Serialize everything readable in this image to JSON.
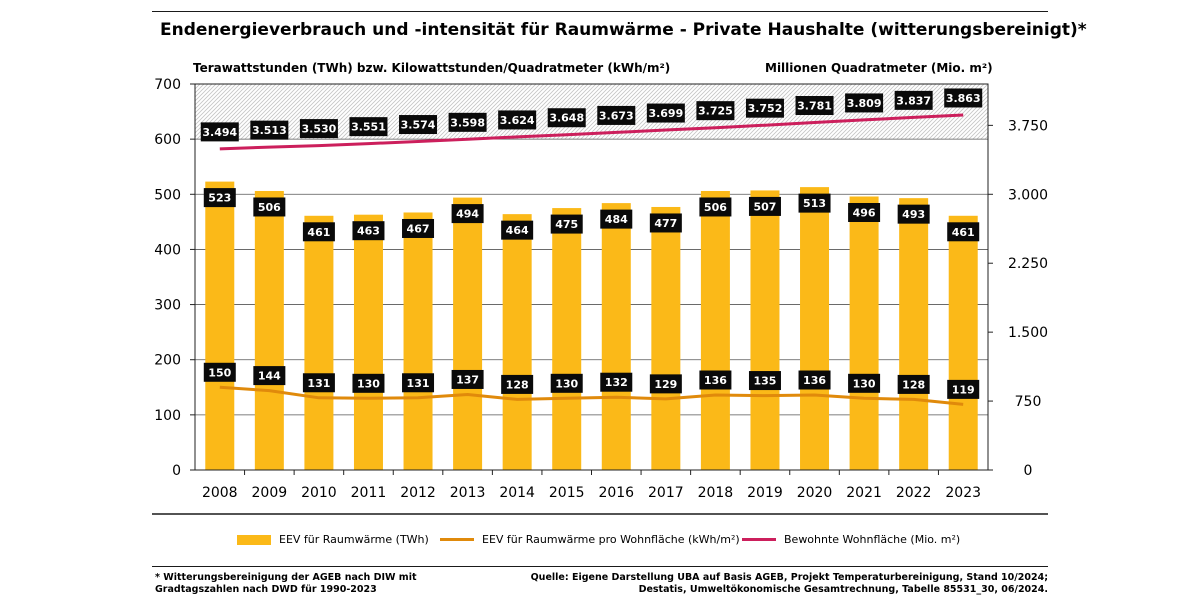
{
  "title": "Endenergieverbrauch und -intensität für Raumwärme - Private Haushalte (witterungsbereinigt)*",
  "chart_data": {
    "type": "bar",
    "categories": [
      "2008",
      "2009",
      "2010",
      "2011",
      "2012",
      "2013",
      "2014",
      "2015",
      "2016",
      "2017",
      "2018",
      "2019",
      "2020",
      "2021",
      "2022",
      "2023"
    ],
    "series": [
      {
        "name": "EEV für Raumwärme (TWh)",
        "type": "bar",
        "axis": "left",
        "color": "#fbb918",
        "values": [
          523,
          506,
          461,
          463,
          467,
          494,
          464,
          475,
          484,
          477,
          506,
          507,
          513,
          496,
          493,
          461
        ],
        "labels": [
          "523",
          "506",
          "461",
          "463",
          "467",
          "494",
          "464",
          "475",
          "484",
          "477",
          "506",
          "507",
          "513",
          "496",
          "493",
          "461"
        ]
      },
      {
        "name": "EEV für Raumwärme pro Wohnfläche (kWh/m²)",
        "type": "line",
        "axis": "left",
        "color": "#e08a0b",
        "values": [
          150,
          144,
          131,
          130,
          131,
          137,
          128,
          130,
          132,
          129,
          136,
          135,
          136,
          130,
          128,
          119
        ],
        "labels": [
          "150",
          "144",
          "131",
          "130",
          "131",
          "137",
          "128",
          "130",
          "132",
          "129",
          "136",
          "135",
          "136",
          "130",
          "128",
          "119"
        ]
      },
      {
        "name": "Bewohnte Wohnfläche (Mio. m²)",
        "type": "line",
        "axis": "right",
        "color": "#cc1f5c",
        "values": [
          3494,
          3513,
          3530,
          3551,
          3574,
          3598,
          3624,
          3648,
          3673,
          3699,
          3725,
          3752,
          3781,
          3809,
          3837,
          3863
        ],
        "labels": [
          "3.494",
          "3.513",
          "3.530",
          "3.551",
          "3.574",
          "3.598",
          "3.624",
          "3.648",
          "3.673",
          "3.699",
          "3.725",
          "3.752",
          "3.781",
          "3.809",
          "3.837",
          "3.863"
        ]
      }
    ],
    "y_left": {
      "title": "Terawattstunden (TWh) bzw. Kilowattstunden/Quadratmeter (kWh/m²)",
      "ylim": [
        0,
        700
      ],
      "ticks": [
        0,
        100,
        200,
        300,
        400,
        500,
        600,
        700
      ],
      "tick_labels": [
        "0",
        "100",
        "200",
        "300",
        "400",
        "500",
        "600",
        "700"
      ]
    },
    "y_right": {
      "title": "Millionen Quadratmeter (Mio. m²)",
      "ylim": [
        0,
        4200
      ],
      "ticks": [
        0,
        750,
        1500,
        2250,
        3000,
        3750
      ],
      "tick_labels": [
        "0",
        "750",
        "1.500",
        "2.250",
        "3.000",
        "3.750"
      ]
    },
    "grid": true,
    "legend_position": "bottom"
  },
  "footnote": {
    "line1": "* Witterungsbereinigung der AGEB nach DIW mit",
    "line2": "Gradtagszahlen nach DWD für 1990-2023"
  },
  "source": {
    "line1": "Quelle: Eigene Darstellung UBA auf Basis AGEB, Projekt Temperaturbereinigung, Stand 10/2024;",
    "line2": "Destatis, Umweltökonomische Gesamtrechnung, Tabelle 85531_30, 06/2024."
  }
}
